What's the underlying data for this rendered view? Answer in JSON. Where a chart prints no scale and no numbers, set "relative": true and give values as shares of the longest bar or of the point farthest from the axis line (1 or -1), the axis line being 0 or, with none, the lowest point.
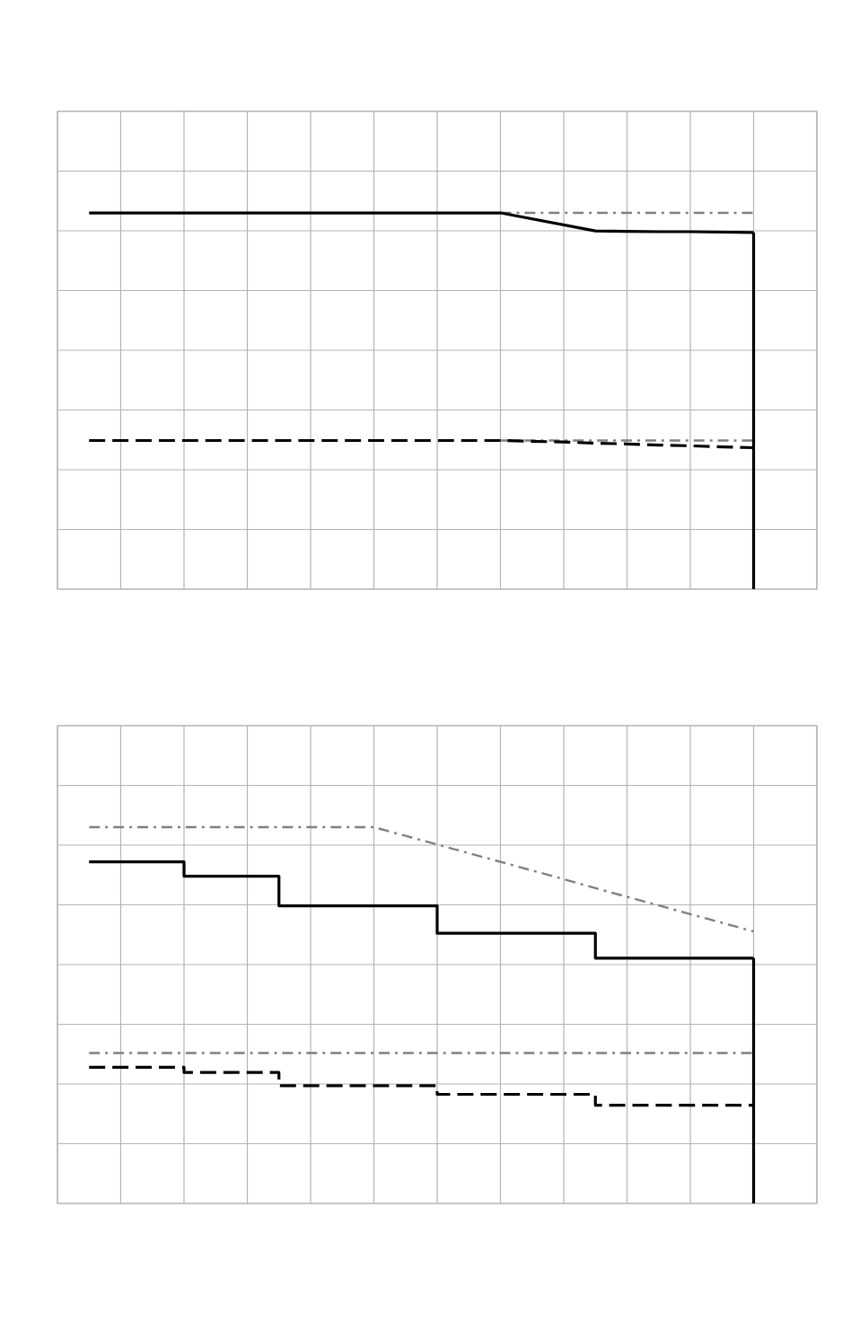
{
  "chart_data": [
    {
      "type": "line",
      "relative": true,
      "grid": true,
      "categories": [
        null,
        null,
        null,
        null,
        null,
        null,
        null,
        null,
        null,
        null,
        null,
        null,
        null,
        null,
        null,
        null,
        null,
        null,
        null,
        null,
        null,
        null
      ],
      "series": [
        {
          "color": "#808080",
          "line_style": "dashdot",
          "values": [
            null,
            null,
            null,
            null,
            null,
            null,
            null,
            null,
            null,
            null,
            null,
            null,
            null,
            1.0,
            1.0,
            1.0,
            1.0,
            1.0,
            1.0,
            1.0,
            1.0,
            1.0
          ]
        },
        {
          "color": "#808080",
          "line_style": "dashdot",
          "values": [
            null,
            null,
            null,
            null,
            null,
            null,
            null,
            null,
            null,
            null,
            null,
            null,
            null,
            0.395,
            0.395,
            0.395,
            0.395,
            0.395,
            0.395,
            0.395,
            0.395,
            0.395
          ]
        },
        {
          "color": "#000000",
          "line_style": "solid",
          "values": [
            1.0,
            1.0,
            1.0,
            1.0,
            1.0,
            1.0,
            1.0,
            1.0,
            1.0,
            1.0,
            1.0,
            1.0,
            1.0,
            1.0,
            0.984,
            0.968,
            0.952,
            0.951,
            0.95,
            0.95,
            0.949,
            0.948
          ]
        },
        {
          "color": "#000000",
          "line_style": "dashed",
          "values": [
            0.395,
            0.395,
            0.395,
            0.395,
            0.395,
            0.395,
            0.395,
            0.395,
            0.395,
            0.395,
            0.395,
            0.395,
            0.395,
            0.395,
            0.393,
            0.391,
            0.388,
            0.386,
            0.383,
            0.381,
            0.378,
            0.376
          ]
        }
      ]
    },
    {
      "type": "line",
      "relative": true,
      "grid": true,
      "categories": [
        null,
        null,
        null,
        null,
        null,
        null,
        null,
        null,
        null,
        null,
        null,
        null,
        null,
        null,
        null,
        null,
        null,
        null,
        null,
        null,
        null,
        null
      ],
      "series": [
        {
          "color": "#808080",
          "line_style": "dashdot",
          "values": [
            1.0,
            1.0,
            1.0,
            1.0,
            1.0,
            1.0,
            1.0,
            1.0,
            1.0,
            1.0,
            0.977,
            0.954,
            0.931,
            0.908,
            0.885,
            0.862,
            0.838,
            0.815,
            0.792,
            0.769,
            0.746,
            0.723
          ]
        },
        {
          "color": "#808080",
          "line_style": "dashdot",
          "values": [
            0.4,
            0.4,
            0.4,
            0.4,
            0.4,
            0.4,
            0.4,
            0.4,
            0.4,
            0.4,
            0.4,
            0.4,
            0.4,
            0.4,
            0.4,
            0.4,
            0.4,
            0.4,
            0.4,
            0.4,
            0.4,
            0.4
          ]
        },
        {
          "type": "step",
          "color": "#000000",
          "line_style": "solid",
          "values": [
            0.908,
            0.908,
            0.908,
            0.87,
            0.87,
            0.87,
            0.791,
            0.791,
            0.791,
            0.791,
            0.791,
            0.718,
            0.718,
            0.718,
            0.718,
            0.718,
            0.652,
            0.652,
            0.652,
            0.652,
            0.652,
            0.652
          ]
        },
        {
          "type": "step",
          "color": "#000000",
          "line_style": "dashed",
          "values": [
            0.362,
            0.362,
            0.362,
            0.348,
            0.348,
            0.348,
            0.313,
            0.313,
            0.313,
            0.313,
            0.313,
            0.29,
            0.29,
            0.29,
            0.29,
            0.29,
            0.261,
            0.261,
            0.261,
            0.261,
            0.261,
            0.261
          ]
        }
      ]
    }
  ]
}
